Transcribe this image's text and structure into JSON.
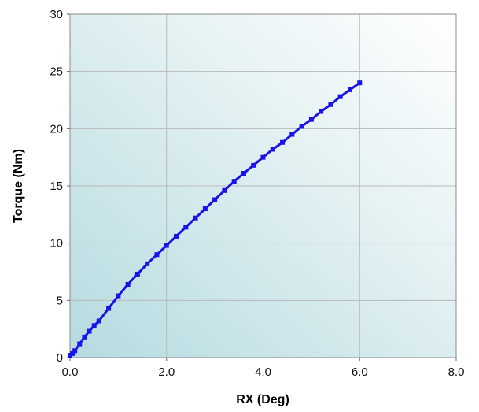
{
  "chart_data": {
    "type": "line",
    "xlabel": "RX (Deg)",
    "ylabel": "Torque (Nm)",
    "xlim": [
      0,
      8
    ],
    "ylim": [
      0,
      30
    ],
    "x_ticks": [
      "0.0",
      "2.0",
      "4.0",
      "6.0",
      "8.0"
    ],
    "y_ticks": [
      "0",
      "5",
      "10",
      "15",
      "20",
      "25",
      "30"
    ],
    "grid": true,
    "legend": "none",
    "series": [
      {
        "color": "#1a12e6",
        "marker": "square",
        "x": [
          0.0,
          0.05,
          0.1,
          0.2,
          0.3,
          0.4,
          0.5,
          0.6,
          0.8,
          1.0,
          1.2,
          1.4,
          1.6,
          1.8,
          2.0,
          2.2,
          2.4,
          2.6,
          2.8,
          3.0,
          3.2,
          3.4,
          3.6,
          3.8,
          4.0,
          4.2,
          4.4,
          4.6,
          4.8,
          5.0,
          5.2,
          5.4,
          5.6,
          5.8,
          6.0
        ],
        "y": [
          0.2,
          0.35,
          0.6,
          1.2,
          1.8,
          2.3,
          2.8,
          3.2,
          4.3,
          5.4,
          6.4,
          7.3,
          8.2,
          9.0,
          9.8,
          10.6,
          11.4,
          12.2,
          13.0,
          13.8,
          14.6,
          15.4,
          16.1,
          16.8,
          17.5,
          18.2,
          18.8,
          19.5,
          20.2,
          20.8,
          21.5,
          22.1,
          22.8,
          23.4,
          24.0
        ]
      }
    ]
  }
}
